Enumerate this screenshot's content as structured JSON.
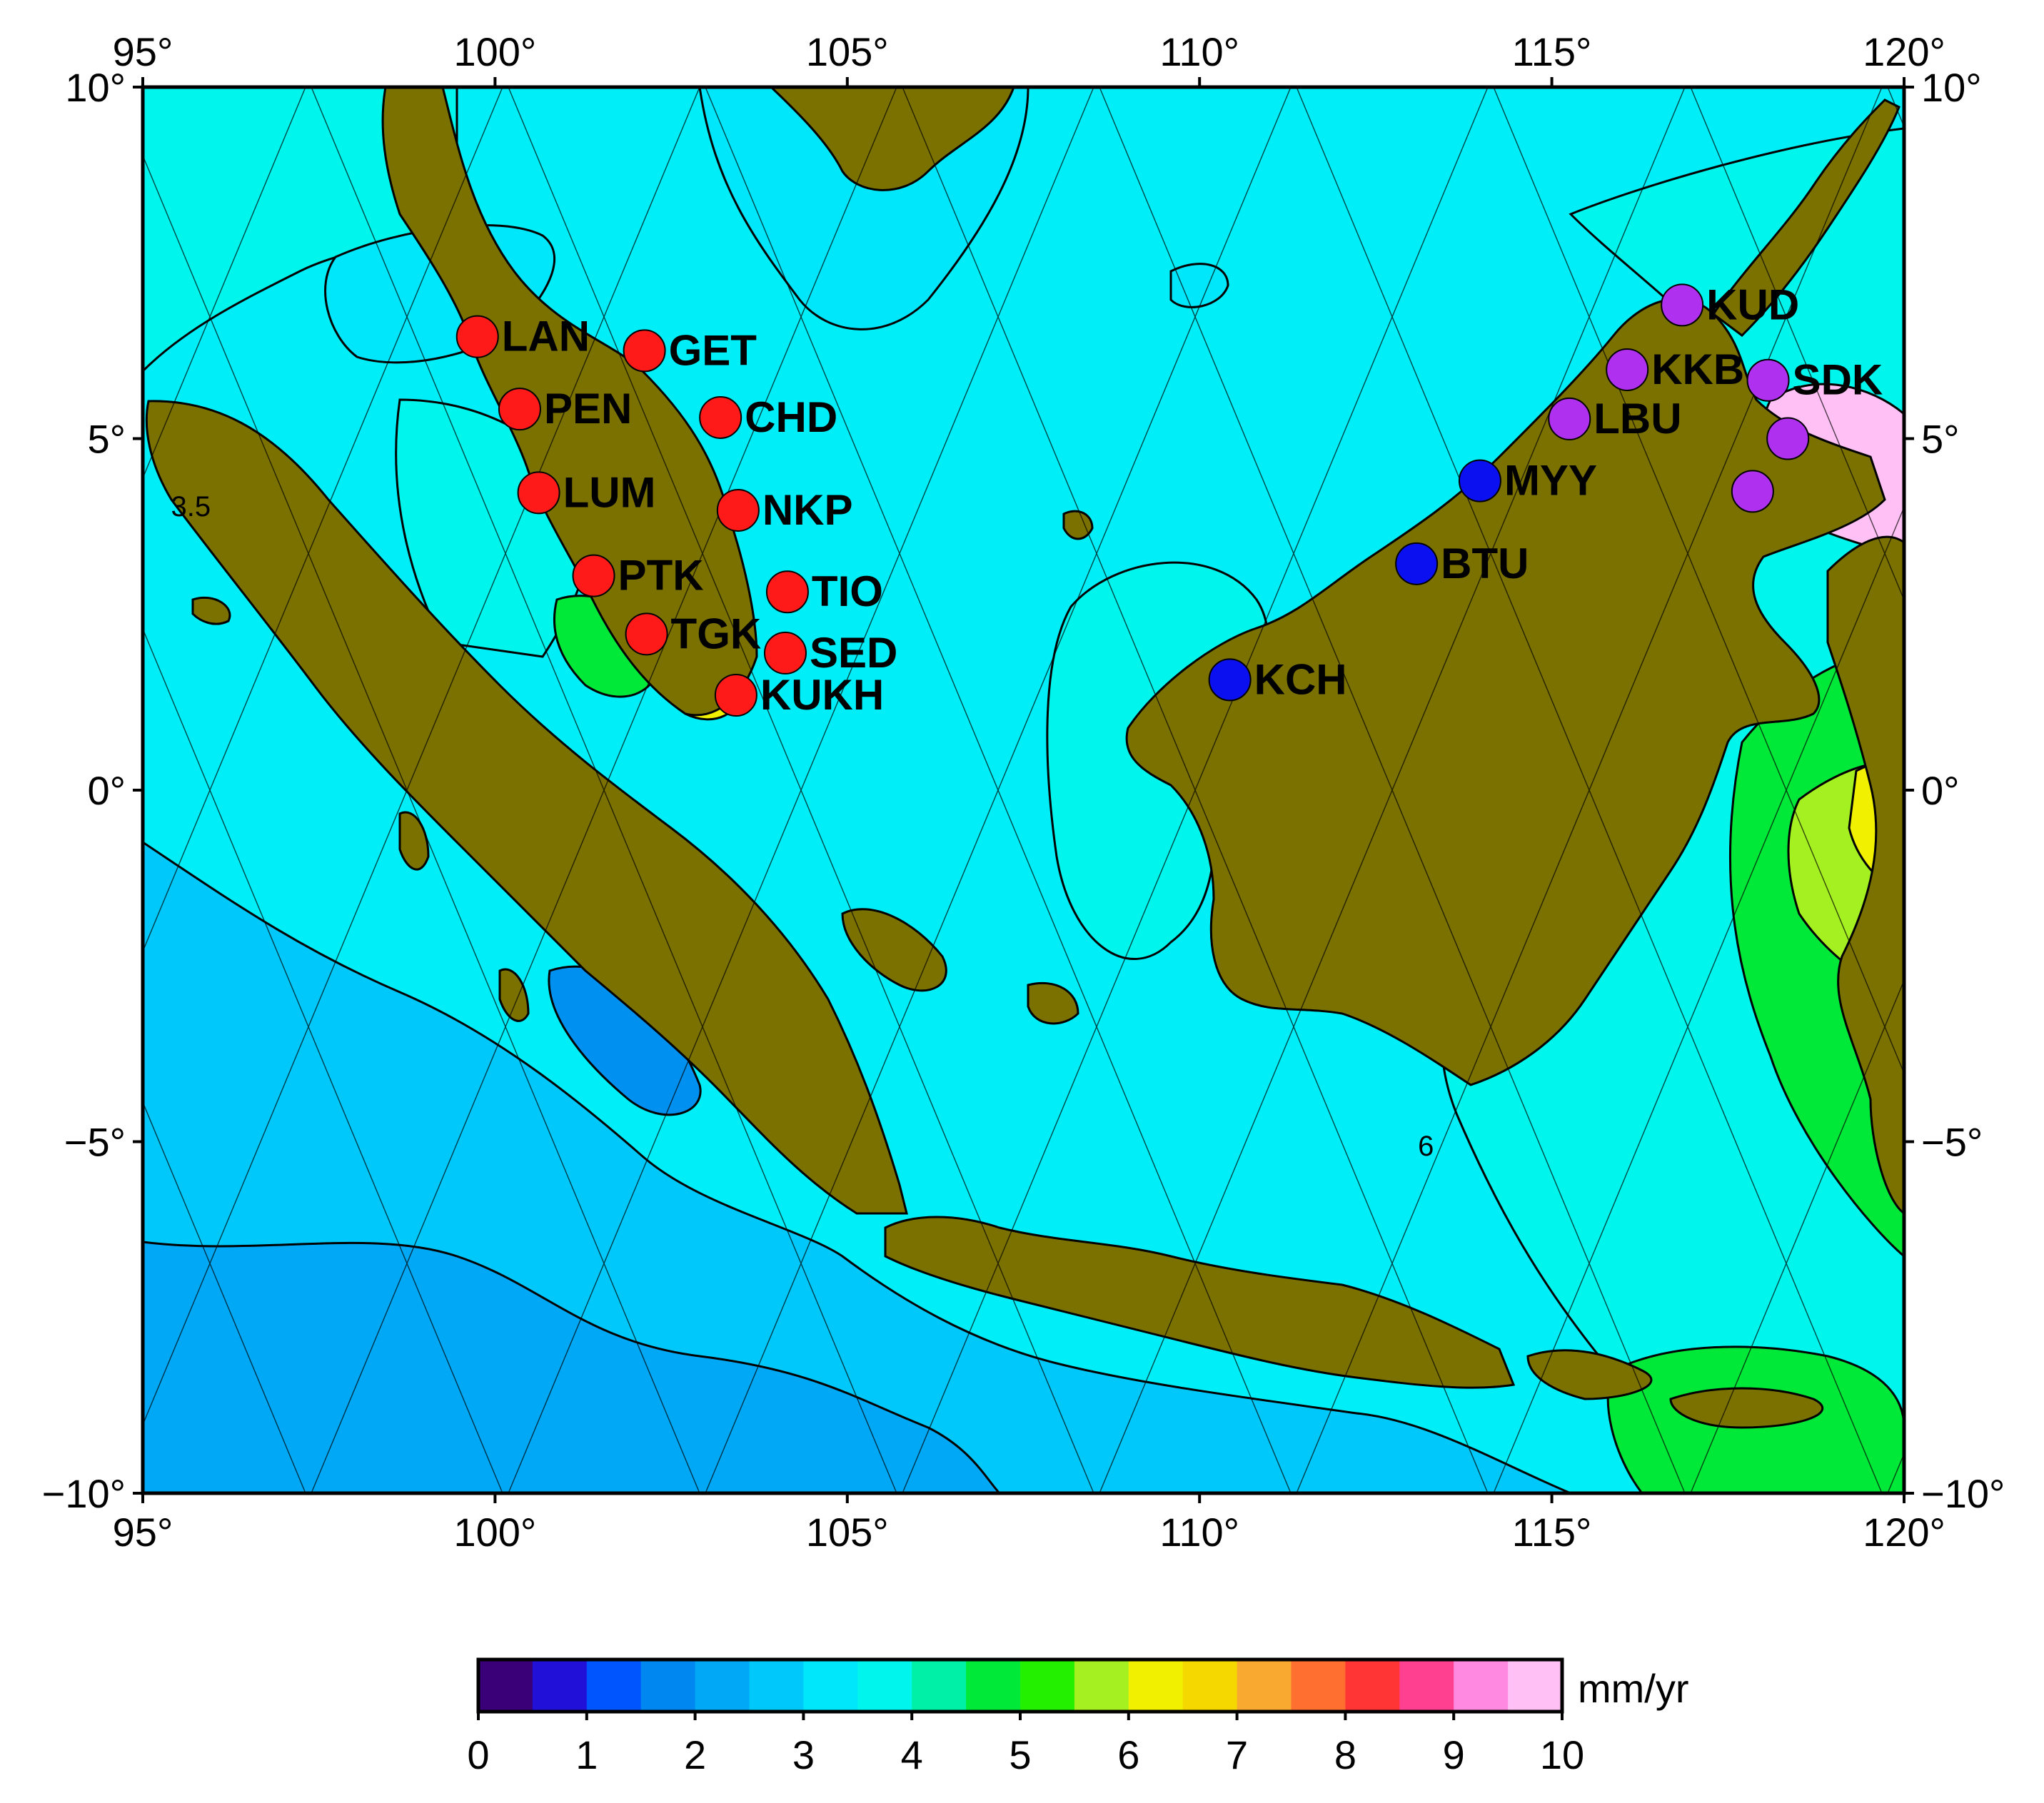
{
  "map": {
    "lon_range": [
      95,
      120
    ],
    "lat_range": [
      -10,
      10
    ],
    "colors": {
      "sea_base": "#00EEF7",
      "land": "#7A7100",
      "frame": "#000000",
      "tracks": "#000000"
    },
    "lon_ticks": [
      {
        "value": 95,
        "label": "95°"
      },
      {
        "value": 100,
        "label": "100°"
      },
      {
        "value": 105,
        "label": "105°"
      },
      {
        "value": 110,
        "label": "110°"
      },
      {
        "value": 115,
        "label": "115°"
      },
      {
        "value": 120,
        "label": "120°"
      }
    ],
    "lat_ticks": [
      {
        "value": 10,
        "label": "10°"
      },
      {
        "value": 5,
        "label": "5°"
      },
      {
        "value": 0,
        "label": "0°"
      },
      {
        "value": -5,
        "label": "−5°"
      },
      {
        "value": -10,
        "label": "−10°"
      }
    ],
    "contour_labels": [
      {
        "text": "3.5",
        "lon": 95.4,
        "lat": 3.9
      },
      {
        "text": "6",
        "lon": 113.1,
        "lat": -5.2
      }
    ],
    "stations": [
      {
        "code": "LAN",
        "lon": 99.75,
        "lat": 6.45,
        "color": "#FF1A1A"
      },
      {
        "code": "GET",
        "lon": 102.12,
        "lat": 6.25,
        "color": "#FF1A1A"
      },
      {
        "code": "PEN",
        "lon": 100.35,
        "lat": 5.42,
        "color": "#FF1A1A"
      },
      {
        "code": "CHD",
        "lon": 103.2,
        "lat": 5.3,
        "color": "#FF1A1A"
      },
      {
        "code": "LUM",
        "lon": 100.62,
        "lat": 4.23,
        "color": "#FF1A1A"
      },
      {
        "code": "NKP",
        "lon": 103.45,
        "lat": 3.98,
        "color": "#FF1A1A"
      },
      {
        "code": "PTK",
        "lon": 101.4,
        "lat": 3.05,
        "color": "#FF1A1A"
      },
      {
        "code": "TIO",
        "lon": 104.15,
        "lat": 2.82,
        "color": "#FF1A1A"
      },
      {
        "code": "TGK",
        "lon": 102.15,
        "lat": 2.22,
        "color": "#FF1A1A"
      },
      {
        "code": "SED",
        "lon": 104.12,
        "lat": 1.95,
        "color": "#FF1A1A"
      },
      {
        "code": "KUKH",
        "lon": 103.42,
        "lat": 1.35,
        "color": "#FF1A1A"
      },
      {
        "code": "KCH",
        "lon": 110.43,
        "lat": 1.57,
        "color": "#0A10F0"
      },
      {
        "code": "BTU",
        "lon": 113.08,
        "lat": 3.22,
        "color": "#0A10F0"
      },
      {
        "code": "MYY",
        "lon": 113.98,
        "lat": 4.4,
        "color": "#0A10F0"
      },
      {
        "code": "LBU",
        "lon": 115.25,
        "lat": 5.28,
        "color": "#B030F0"
      },
      {
        "code": "KKB",
        "lon": 116.07,
        "lat": 5.98,
        "color": "#B030F0"
      },
      {
        "code": "KUD",
        "lon": 116.85,
        "lat": 6.9,
        "color": "#B030F0"
      },
      {
        "code": "SDK",
        "lon": 118.07,
        "lat": 5.83,
        "color": "#B030F0"
      },
      {
        "code": "",
        "lon": 118.35,
        "lat": 5.0,
        "color": "#B030F0"
      },
      {
        "code": "",
        "lon": 117.85,
        "lat": 4.25,
        "color": "#B030F0"
      }
    ]
  },
  "colorbar": {
    "unit": "mm/yr",
    "min": 0,
    "max": 10,
    "step": 0.5,
    "colors": [
      "#3A0077",
      "#2010D8",
      "#0055FF",
      "#0088F0",
      "#00A8F5",
      "#00C8FA",
      "#00E6FA",
      "#00F5EC",
      "#00F0A8",
      "#00E838",
      "#22F000",
      "#A5F020",
      "#F0F000",
      "#F5D800",
      "#F9A830",
      "#FF7030",
      "#FF3535",
      "#FF4090",
      "#FF88E0",
      "#FFC0F5"
    ],
    "labels": [
      "0",
      "1",
      "2",
      "3",
      "4",
      "5",
      "6",
      "7",
      "8",
      "9",
      "10"
    ]
  }
}
